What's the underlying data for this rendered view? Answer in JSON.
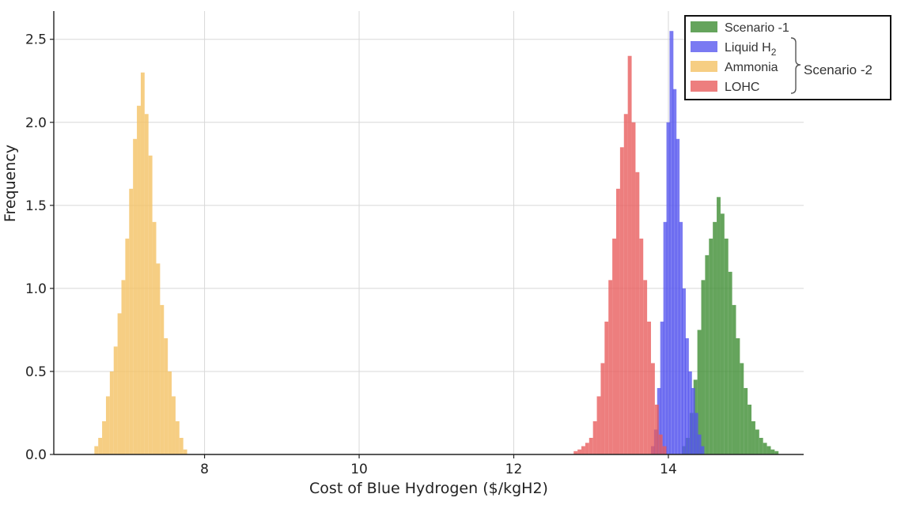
{
  "chart_data": {
    "type": "bar",
    "subtype": "histogram",
    "xlabel": "Cost of Blue Hydrogen ($/kgH2)",
    "ylabel": "Frequency",
    "xlim": [
      6.05,
      15.75
    ],
    "ylim": [
      0,
      2.67
    ],
    "x_ticks": [
      8,
      10,
      12,
      14
    ],
    "y_ticks": [
      0.0,
      0.5,
      1.0,
      1.5,
      2.0,
      2.5
    ],
    "x_tick_labels": [
      "8",
      "10",
      "12",
      "14"
    ],
    "y_tick_labels": [
      "0.0",
      "0.5",
      "1.0",
      "1.5",
      "2.0",
      "2.5"
    ],
    "grid": true,
    "legend_position": "top-right",
    "legend_group_label": "Scenario -2",
    "bin_width": 0.025,
    "series": [
      {
        "name": "Scenario -1",
        "color": "#3a8a2e",
        "bins": [
          {
            "x": 14.2,
            "y": 0.05
          },
          {
            "x": 14.25,
            "y": 0.1
          },
          {
            "x": 14.3,
            "y": 0.25
          },
          {
            "x": 14.35,
            "y": 0.45
          },
          {
            "x": 14.4,
            "y": 0.75
          },
          {
            "x": 14.45,
            "y": 1.05
          },
          {
            "x": 14.5,
            "y": 1.2
          },
          {
            "x": 14.55,
            "y": 1.3
          },
          {
            "x": 14.6,
            "y": 1.4
          },
          {
            "x": 14.65,
            "y": 1.55
          },
          {
            "x": 14.7,
            "y": 1.45
          },
          {
            "x": 14.75,
            "y": 1.3
          },
          {
            "x": 14.8,
            "y": 1.1
          },
          {
            "x": 14.85,
            "y": 0.9
          },
          {
            "x": 14.9,
            "y": 0.7
          },
          {
            "x": 14.95,
            "y": 0.55
          },
          {
            "x": 15.0,
            "y": 0.4
          },
          {
            "x": 15.05,
            "y": 0.3
          },
          {
            "x": 15.1,
            "y": 0.2
          },
          {
            "x": 15.15,
            "y": 0.15
          },
          {
            "x": 15.2,
            "y": 0.1
          },
          {
            "x": 15.25,
            "y": 0.07
          },
          {
            "x": 15.3,
            "y": 0.05
          },
          {
            "x": 15.35,
            "y": 0.03
          },
          {
            "x": 15.4,
            "y": 0.02
          }
        ]
      },
      {
        "name": "Liquid H",
        "name_subscript": "2",
        "color": "#5555ee",
        "bins": [
          {
            "x": 13.8,
            "y": 0.05
          },
          {
            "x": 13.84,
            "y": 0.15
          },
          {
            "x": 13.88,
            "y": 0.4
          },
          {
            "x": 13.92,
            "y": 0.8
          },
          {
            "x": 13.96,
            "y": 1.4
          },
          {
            "x": 14.0,
            "y": 2.0
          },
          {
            "x": 14.04,
            "y": 2.55
          },
          {
            "x": 14.08,
            "y": 2.2
          },
          {
            "x": 14.12,
            "y": 1.9
          },
          {
            "x": 14.16,
            "y": 1.4
          },
          {
            "x": 14.2,
            "y": 1.0
          },
          {
            "x": 14.24,
            "y": 0.7
          },
          {
            "x": 14.28,
            "y": 0.5
          },
          {
            "x": 14.32,
            "y": 0.4
          },
          {
            "x": 14.36,
            "y": 0.25
          },
          {
            "x": 14.4,
            "y": 0.12
          },
          {
            "x": 14.44,
            "y": 0.05
          }
        ]
      },
      {
        "name": "Ammonia",
        "color": "#f4c060",
        "bins": [
          {
            "x": 6.6,
            "y": 0.05
          },
          {
            "x": 6.65,
            "y": 0.1
          },
          {
            "x": 6.7,
            "y": 0.2
          },
          {
            "x": 6.75,
            "y": 0.35
          },
          {
            "x": 6.8,
            "y": 0.5
          },
          {
            "x": 6.85,
            "y": 0.65
          },
          {
            "x": 6.9,
            "y": 0.85
          },
          {
            "x": 6.95,
            "y": 1.05
          },
          {
            "x": 7.0,
            "y": 1.3
          },
          {
            "x": 7.05,
            "y": 1.6
          },
          {
            "x": 7.1,
            "y": 1.9
          },
          {
            "x": 7.15,
            "y": 2.1
          },
          {
            "x": 7.2,
            "y": 2.3
          },
          {
            "x": 7.25,
            "y": 2.05
          },
          {
            "x": 7.3,
            "y": 1.8
          },
          {
            "x": 7.35,
            "y": 1.4
          },
          {
            "x": 7.4,
            "y": 1.15
          },
          {
            "x": 7.45,
            "y": 0.9
          },
          {
            "x": 7.5,
            "y": 0.7
          },
          {
            "x": 7.55,
            "y": 0.5
          },
          {
            "x": 7.6,
            "y": 0.35
          },
          {
            "x": 7.65,
            "y": 0.2
          },
          {
            "x": 7.7,
            "y": 0.1
          },
          {
            "x": 7.75,
            "y": 0.03
          }
        ]
      },
      {
        "name": "LOHC",
        "color": "#e85a5a",
        "bins": [
          {
            "x": 12.8,
            "y": 0.02
          },
          {
            "x": 12.85,
            "y": 0.03
          },
          {
            "x": 12.9,
            "y": 0.05
          },
          {
            "x": 12.95,
            "y": 0.07
          },
          {
            "x": 13.0,
            "y": 0.1
          },
          {
            "x": 13.05,
            "y": 0.2
          },
          {
            "x": 13.1,
            "y": 0.35
          },
          {
            "x": 13.15,
            "y": 0.55
          },
          {
            "x": 13.2,
            "y": 0.8
          },
          {
            "x": 13.25,
            "y": 1.05
          },
          {
            "x": 13.3,
            "y": 1.3
          },
          {
            "x": 13.35,
            "y": 1.6
          },
          {
            "x": 13.4,
            "y": 1.85
          },
          {
            "x": 13.45,
            "y": 2.05
          },
          {
            "x": 13.5,
            "y": 2.4
          },
          {
            "x": 13.55,
            "y": 2.0
          },
          {
            "x": 13.6,
            "y": 1.7
          },
          {
            "x": 13.65,
            "y": 1.3
          },
          {
            "x": 13.7,
            "y": 1.05
          },
          {
            "x": 13.75,
            "y": 0.8
          },
          {
            "x": 13.8,
            "y": 0.55
          },
          {
            "x": 13.85,
            "y": 0.3
          },
          {
            "x": 13.9,
            "y": 0.12
          },
          {
            "x": 13.95,
            "y": 0.05
          }
        ]
      }
    ]
  }
}
